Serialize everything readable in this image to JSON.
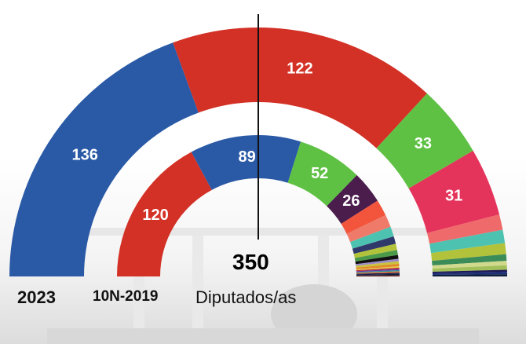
{
  "chart_data": [
    {
      "type": "pie",
      "variant": "parliament-half-donut",
      "name": "2023",
      "segments": [
        {
          "label": "136",
          "value": 136,
          "color": "#2a59a6"
        },
        {
          "label": "122",
          "value": 122,
          "color": "#d33126"
        },
        {
          "label": "33",
          "value": 33,
          "color": "#5ec143"
        },
        {
          "label": "31",
          "value": 31,
          "color": "#e5345c"
        },
        {
          "label": "",
          "value": 7,
          "color": "#ef6a6a"
        },
        {
          "label": "",
          "value": 6,
          "color": "#4ec2b0"
        },
        {
          "label": "",
          "value": 5,
          "color": "#b2c23a"
        },
        {
          "label": "",
          "value": 3,
          "color": "#3c8c5a"
        },
        {
          "label": "",
          "value": 2,
          "color": "#d1d98c"
        },
        {
          "label": "",
          "value": 2,
          "color": "#a3c05a"
        },
        {
          "label": "",
          "value": 1,
          "color": "#1d1a55"
        },
        {
          "label": "",
          "value": 1,
          "color": "#1c2f7a"
        },
        {
          "label": "",
          "value": 1,
          "color": "#0d1f3d"
        }
      ]
    },
    {
      "type": "pie",
      "variant": "parliament-half-donut",
      "name": "10N-2019",
      "segments": [
        {
          "label": "120",
          "value": 120,
          "color": "#d33126"
        },
        {
          "label": "89",
          "value": 89,
          "color": "#2a59a6"
        },
        {
          "label": "52",
          "value": 52,
          "color": "#5ec143"
        },
        {
          "label": "26",
          "value": 26,
          "color": "#4a1d4d"
        },
        {
          "label": "",
          "value": 13,
          "color": "#f2553b"
        },
        {
          "label": "",
          "value": 10,
          "color": "#ef7a6a"
        },
        {
          "label": "",
          "value": 8,
          "color": "#4ec2b0"
        },
        {
          "label": "",
          "value": 6,
          "color": "#2f3a6b"
        },
        {
          "label": "",
          "value": 5,
          "color": "#b2c23a"
        },
        {
          "label": "",
          "value": 4,
          "color": "#4a9a4a"
        },
        {
          "label": "",
          "value": 3,
          "color": "#111111"
        },
        {
          "label": "",
          "value": 2,
          "color": "#9c8cc8"
        },
        {
          "label": "",
          "value": 2,
          "color": "#c9c23a"
        },
        {
          "label": "",
          "value": 2,
          "color": "#e08a2a"
        },
        {
          "label": "",
          "value": 1,
          "color": "#e3d24a"
        },
        {
          "label": "",
          "value": 1,
          "color": "#c62a2a"
        },
        {
          "label": "",
          "value": 1,
          "color": "#6b3aa0"
        },
        {
          "label": "",
          "value": 1,
          "color": "#2c8c9c"
        },
        {
          "label": "",
          "value": 1,
          "color": "#ef7a2a"
        },
        {
          "label": "",
          "value": 1,
          "color": "#1d1a55"
        },
        {
          "label": "",
          "value": 1,
          "color": "#0d1f3d"
        },
        {
          "label": "",
          "value": 1,
          "color": "#6b2a2a"
        }
      ]
    }
  ],
  "labels": {
    "year_2023": "2023",
    "year_2019": "10N-2019",
    "total": "350",
    "seats_caption": "Diputados/as"
  },
  "colors": {
    "divider": "#111111",
    "background_image_tone": "#e6e6e6"
  }
}
